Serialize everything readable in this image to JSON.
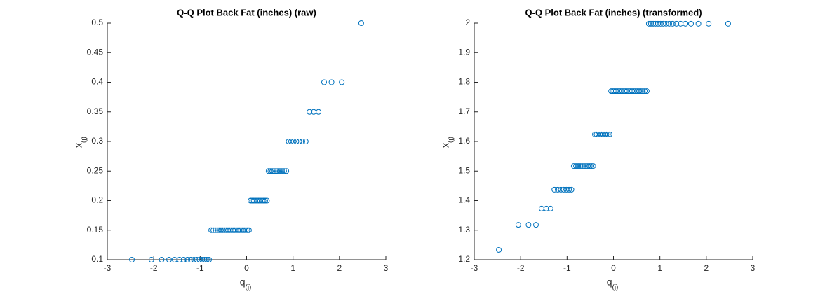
{
  "chart_data": [
    {
      "type": "scatter",
      "title": "Q-Q Plot Back Fat (inches) (raw)",
      "xlabel": "q",
      "xlabel_subscript": "(j)",
      "ylabel": "x",
      "ylabel_subscript": "(j)",
      "color": "#0072bd",
      "xlim": [
        -3,
        3
      ],
      "xticks": [
        -3,
        -2,
        -1,
        0,
        1,
        2,
        3
      ],
      "ylim": [
        0.1,
        0.5
      ],
      "yticks": [
        0.1,
        0.15,
        0.2,
        0.25,
        0.3,
        0.35,
        0.4,
        0.45,
        0.5
      ],
      "x": [
        -2.47,
        -2.05,
        -1.83,
        -1.67,
        -1.55,
        -1.445,
        -1.355,
        -1.274,
        -1.201,
        -1.134,
        -1.072,
        -1.014,
        -0.959,
        -0.906,
        -0.856,
        -0.808,
        -0.762,
        -0.717,
        -0.674,
        -0.632,
        -0.592,
        -0.552,
        -0.513,
        -0.474,
        -0.437,
        -0.4,
        -0.364,
        -0.328,
        -0.292,
        -0.257,
        -0.222,
        -0.188,
        -0.153,
        -0.119,
        -0.085,
        -0.051,
        -0.017,
        0.017,
        0.051,
        0.085,
        0.119,
        0.153,
        0.188,
        0.222,
        0.257,
        0.292,
        0.328,
        0.364,
        0.4,
        0.437,
        0.474,
        0.513,
        0.552,
        0.592,
        0.632,
        0.674,
        0.717,
        0.762,
        0.808,
        0.856,
        0.906,
        0.959,
        1.014,
        1.072,
        1.134,
        1.201,
        1.274,
        1.355,
        1.445,
        1.55,
        1.67,
        1.83,
        2.05,
        2.47
      ],
      "values": [
        0.1,
        0.1,
        0.1,
        0.1,
        0.1,
        0.1,
        0.1,
        0.1,
        0.1,
        0.1,
        0.1,
        0.1,
        0.1,
        0.1,
        0.1,
        0.1,
        0.15,
        0.15,
        0.15,
        0.15,
        0.15,
        0.15,
        0.15,
        0.15,
        0.15,
        0.15,
        0.15,
        0.15,
        0.15,
        0.15,
        0.15,
        0.15,
        0.15,
        0.15,
        0.15,
        0.15,
        0.15,
        0.15,
        0.15,
        0.2,
        0.2,
        0.2,
        0.2,
        0.2,
        0.2,
        0.2,
        0.2,
        0.2,
        0.2,
        0.2,
        0.25,
        0.25,
        0.25,
        0.25,
        0.25,
        0.25,
        0.25,
        0.25,
        0.25,
        0.25,
        0.3,
        0.3,
        0.3,
        0.3,
        0.3,
        0.3,
        0.3,
        0.35,
        0.35,
        0.35,
        0.4,
        0.4,
        0.4,
        0.5
      ]
    },
    {
      "type": "scatter",
      "title": "Q-Q Plot Back Fat (inches) (transformed)",
      "xlabel": "q",
      "xlabel_subscript": "(j)",
      "ylabel": "x",
      "ylabel_subscript": "(j)",
      "color": "#0072bd",
      "xlim": [
        -3,
        3
      ],
      "xticks": [
        -3,
        -2,
        -1,
        0,
        1,
        2,
        3
      ],
      "ylim": [
        1.2,
        2
      ],
      "yticks": [
        1.2,
        1.3,
        1.4,
        1.5,
        1.6,
        1.7,
        1.8,
        1.9,
        2
      ],
      "x": [
        -2.47,
        -2.05,
        -1.83,
        -1.67,
        -1.55,
        -1.445,
        -1.355,
        -1.274,
        -1.201,
        -1.134,
        -1.072,
        -1.014,
        -0.959,
        -0.906,
        -0.856,
        -0.808,
        -0.762,
        -0.717,
        -0.674,
        -0.632,
        -0.592,
        -0.552,
        -0.513,
        -0.474,
        -0.437,
        -0.4,
        -0.364,
        -0.328,
        -0.292,
        -0.257,
        -0.222,
        -0.188,
        -0.153,
        -0.119,
        -0.085,
        -0.051,
        -0.017,
        0.017,
        0.051,
        0.085,
        0.119,
        0.153,
        0.188,
        0.222,
        0.257,
        0.292,
        0.328,
        0.364,
        0.4,
        0.437,
        0.474,
        0.513,
        0.552,
        0.592,
        0.632,
        0.674,
        0.717,
        0.762,
        0.808,
        0.856,
        0.906,
        0.959,
        1.014,
        1.072,
        1.134,
        1.201,
        1.274,
        1.355,
        1.445,
        1.55,
        1.67,
        1.83,
        2.05,
        2.47
      ],
      "values": [
        1.233,
        1.318,
        1.318,
        1.318,
        1.373,
        1.373,
        1.373,
        1.437,
        1.437,
        1.437,
        1.437,
        1.437,
        1.437,
        1.437,
        1.517,
        1.517,
        1.517,
        1.517,
        1.517,
        1.517,
        1.517,
        1.517,
        1.517,
        1.517,
        1.517,
        1.624,
        1.624,
        1.624,
        1.624,
        1.624,
        1.624,
        1.624,
        1.624,
        1.624,
        1.624,
        1.77,
        1.77,
        1.77,
        1.77,
        1.77,
        1.77,
        1.77,
        1.77,
        1.77,
        1.77,
        1.77,
        1.77,
        1.77,
        1.77,
        1.77,
        1.77,
        1.77,
        1.77,
        1.77,
        1.77,
        1.77,
        1.77,
        1.998,
        1.998,
        1.998,
        1.998,
        1.998,
        1.998,
        1.998,
        1.998,
        1.998,
        1.998,
        1.998,
        1.998,
        1.998,
        1.998,
        1.998,
        1.998,
        1.998
      ]
    }
  ]
}
